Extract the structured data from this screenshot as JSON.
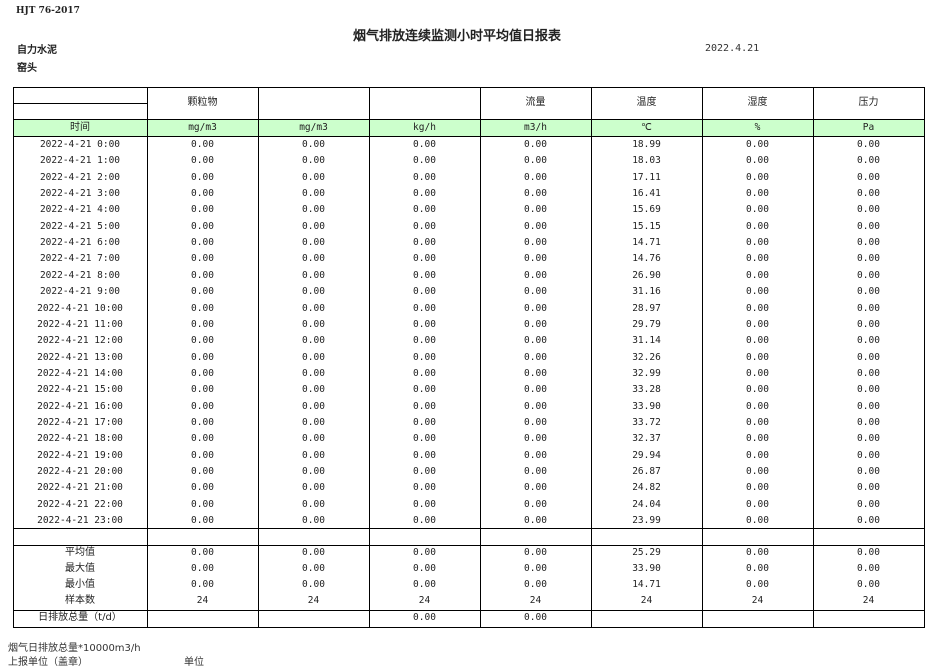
{
  "header": {
    "standard": "HJT  76-2017",
    "title": "烟气排放连续监测小时平均值日报表",
    "company": "自力水泥",
    "unit_name": "窑头",
    "date": "2022.4.21"
  },
  "table": {
    "columns": [
      "",
      "颗粒物",
      "",
      "",
      "流量",
      "温度",
      "湿度",
      "压力"
    ],
    "units": [
      "时间",
      "mg/m3",
      "mg/m3",
      "kg/h",
      "m3/h",
      "℃",
      "%",
      "Pa"
    ],
    "unit_row_color": "#ccffcc",
    "rows": [
      [
        "2022-4-21  0:00",
        "0.00",
        "0.00",
        "0.00",
        "0.00",
        "18.99",
        "0.00",
        "0.00"
      ],
      [
        "2022-4-21  1:00",
        "0.00",
        "0.00",
        "0.00",
        "0.00",
        "18.03",
        "0.00",
        "0.00"
      ],
      [
        "2022-4-21  2:00",
        "0.00",
        "0.00",
        "0.00",
        "0.00",
        "17.11",
        "0.00",
        "0.00"
      ],
      [
        "2022-4-21  3:00",
        "0.00",
        "0.00",
        "0.00",
        "0.00",
        "16.41",
        "0.00",
        "0.00"
      ],
      [
        "2022-4-21  4:00",
        "0.00",
        "0.00",
        "0.00",
        "0.00",
        "15.69",
        "0.00",
        "0.00"
      ],
      [
        "2022-4-21  5:00",
        "0.00",
        "0.00",
        "0.00",
        "0.00",
        "15.15",
        "0.00",
        "0.00"
      ],
      [
        "2022-4-21  6:00",
        "0.00",
        "0.00",
        "0.00",
        "0.00",
        "14.71",
        "0.00",
        "0.00"
      ],
      [
        "2022-4-21  7:00",
        "0.00",
        "0.00",
        "0.00",
        "0.00",
        "14.76",
        "0.00",
        "0.00"
      ],
      [
        "2022-4-21  8:00",
        "0.00",
        "0.00",
        "0.00",
        "0.00",
        "26.90",
        "0.00",
        "0.00"
      ],
      [
        "2022-4-21  9:00",
        "0.00",
        "0.00",
        "0.00",
        "0.00",
        "31.16",
        "0.00",
        "0.00"
      ],
      [
        "2022-4-21  10:00",
        "0.00",
        "0.00",
        "0.00",
        "0.00",
        "28.97",
        "0.00",
        "0.00"
      ],
      [
        "2022-4-21  11:00",
        "0.00",
        "0.00",
        "0.00",
        "0.00",
        "29.79",
        "0.00",
        "0.00"
      ],
      [
        "2022-4-21  12:00",
        "0.00",
        "0.00",
        "0.00",
        "0.00",
        "31.14",
        "0.00",
        "0.00"
      ],
      [
        "2022-4-21  13:00",
        "0.00",
        "0.00",
        "0.00",
        "0.00",
        "32.26",
        "0.00",
        "0.00"
      ],
      [
        "2022-4-21  14:00",
        "0.00",
        "0.00",
        "0.00",
        "0.00",
        "32.99",
        "0.00",
        "0.00"
      ],
      [
        "2022-4-21  15:00",
        "0.00",
        "0.00",
        "0.00",
        "0.00",
        "33.28",
        "0.00",
        "0.00"
      ],
      [
        "2022-4-21  16:00",
        "0.00",
        "0.00",
        "0.00",
        "0.00",
        "33.90",
        "0.00",
        "0.00"
      ],
      [
        "2022-4-21  17:00",
        "0.00",
        "0.00",
        "0.00",
        "0.00",
        "33.72",
        "0.00",
        "0.00"
      ],
      [
        "2022-4-21  18:00",
        "0.00",
        "0.00",
        "0.00",
        "0.00",
        "32.37",
        "0.00",
        "0.00"
      ],
      [
        "2022-4-21  19:00",
        "0.00",
        "0.00",
        "0.00",
        "0.00",
        "29.94",
        "0.00",
        "0.00"
      ],
      [
        "2022-4-21  20:00",
        "0.00",
        "0.00",
        "0.00",
        "0.00",
        "26.87",
        "0.00",
        "0.00"
      ],
      [
        "2022-4-21  21:00",
        "0.00",
        "0.00",
        "0.00",
        "0.00",
        "24.82",
        "0.00",
        "0.00"
      ],
      [
        "2022-4-21  22:00",
        "0.00",
        "0.00",
        "0.00",
        "0.00",
        "24.04",
        "0.00",
        "0.00"
      ],
      [
        "2022-4-21  23:00",
        "0.00",
        "0.00",
        "0.00",
        "0.00",
        "23.99",
        "0.00",
        "0.00"
      ]
    ],
    "summary": [
      [
        "平均值",
        "0.00",
        "0.00",
        "0.00",
        "0.00",
        "25.29",
        "0.00",
        "0.00"
      ],
      [
        "最大值",
        "0.00",
        "0.00",
        "0.00",
        "0.00",
        "33.90",
        "0.00",
        "0.00"
      ],
      [
        "最小值",
        "0.00",
        "0.00",
        "0.00",
        "0.00",
        "14.71",
        "0.00",
        "0.00"
      ],
      [
        "样本数",
        "24",
        "24",
        "24",
        "24",
        "24",
        "24",
        "24"
      ],
      [
        "日排放总量（t/d）",
        "",
        "",
        "0.00",
        "0.00",
        "",
        "",
        ""
      ]
    ]
  },
  "footer": {
    "flue_note": "烟气日排放总量*10000m3/h",
    "report_unit": "上报单位（盖章）",
    "unit_label": "单位"
  }
}
